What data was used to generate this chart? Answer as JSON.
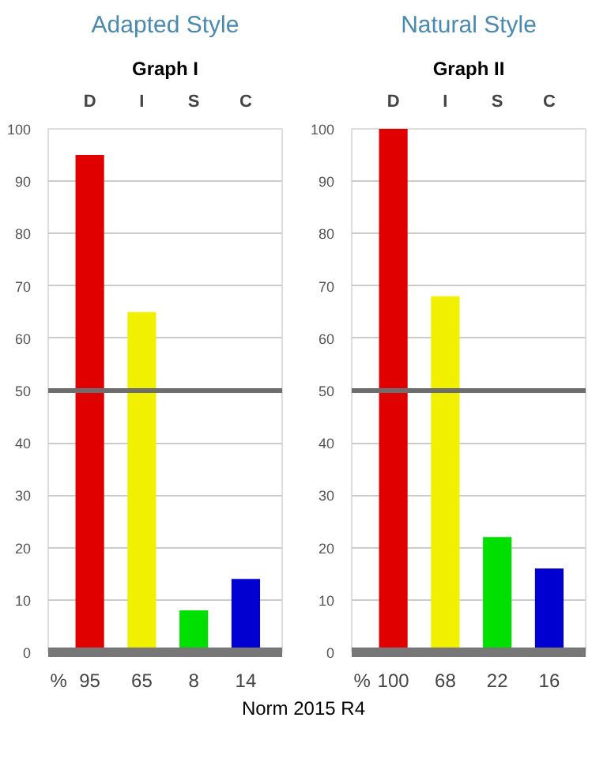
{
  "chart_data": [
    {
      "type": "bar",
      "title": "Adapted Style",
      "subtitle": "Graph I",
      "categories": [
        "D",
        "I",
        "S",
        "C"
      ],
      "values": [
        95,
        65,
        8,
        14
      ],
      "colors": [
        "#e00000",
        "#f0f000",
        "#00e000",
        "#0000d0"
      ],
      "ylim": [
        0,
        100
      ],
      "yticks": [
        0,
        10,
        20,
        30,
        40,
        50,
        60,
        70,
        80,
        90,
        100
      ],
      "grid": "y",
      "data_labels": true,
      "ref_lines": [
        {
          "axis": "y",
          "value": 50,
          "color": "#6d6d6d"
        }
      ],
      "annotations": [
        "%"
      ]
    },
    {
      "type": "bar",
      "title": "Natural Style",
      "subtitle": "Graph II",
      "categories": [
        "D",
        "I",
        "S",
        "C"
      ],
      "values": [
        100,
        68,
        22,
        16
      ],
      "colors": [
        "#e00000",
        "#f0f000",
        "#00e000",
        "#0000d0"
      ],
      "ylim": [
        0,
        100
      ],
      "yticks": [
        0,
        10,
        20,
        30,
        40,
        50,
        60,
        70,
        80,
        90,
        100
      ],
      "grid": "y",
      "data_labels": true,
      "ref_lines": [
        {
          "axis": "y",
          "value": 50,
          "color": "#6d6d6d"
        }
      ],
      "annotations": [
        "%",
        "Norm 2015 R4"
      ]
    }
  ]
}
